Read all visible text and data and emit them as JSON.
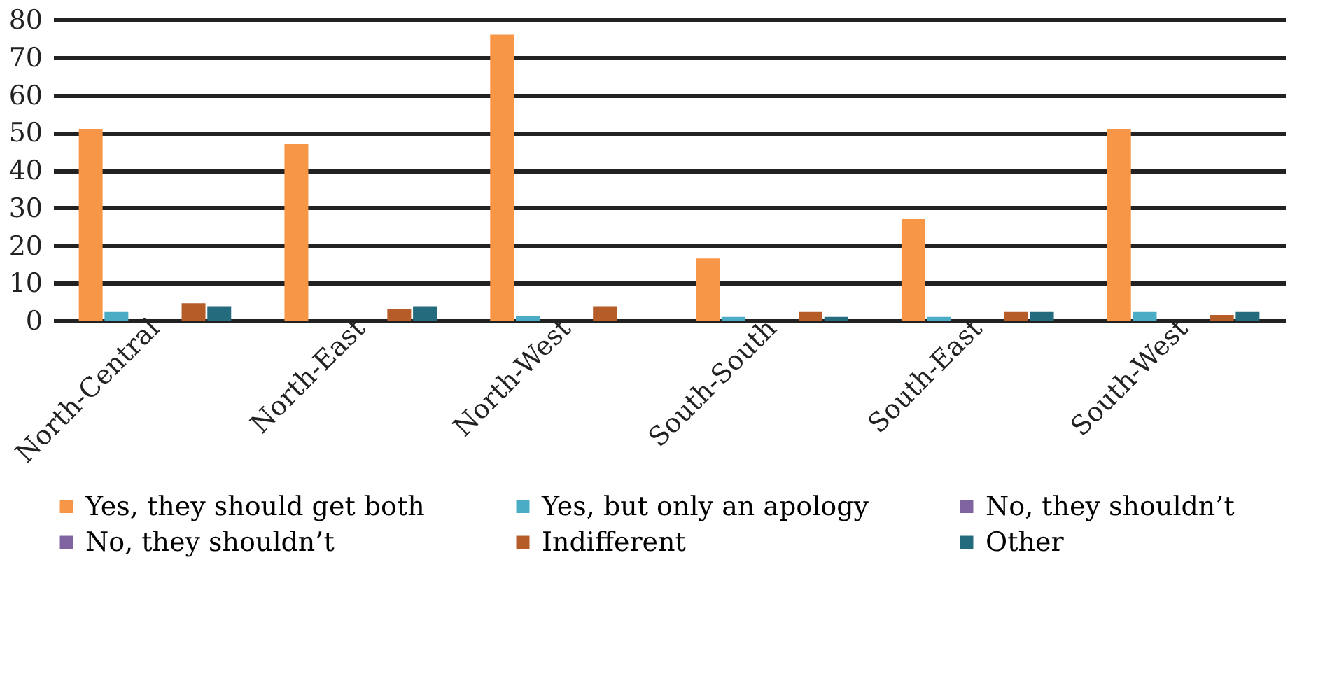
{
  "chart_data": {
    "type": "bar",
    "categories": [
      "North-Central",
      "North-East",
      "North-West",
      "South-South",
      "South-East",
      "South-West"
    ],
    "series": [
      {
        "name": "Yes, they should get both",
        "color": "#f79646",
        "values": [
          51,
          47,
          76,
          16.5,
          27,
          51
        ]
      },
      {
        "name": "Yes, but only an apology",
        "color": "#4bacc6",
        "values": [
          2.3,
          0,
          1.2,
          1,
          1,
          2.3
        ]
      },
      {
        "name": "No, they shouldn’t",
        "color": "#8064a2",
        "values": [
          0,
          0,
          0,
          0,
          0,
          0
        ]
      },
      {
        "name": "No, they shouldn’t",
        "color": "#8064a2",
        "values": [
          0,
          0,
          0,
          0,
          0,
          0
        ]
      },
      {
        "name": "Indifferent",
        "color": "#b65c28",
        "values": [
          4.6,
          3,
          3.8,
          2.3,
          2.3,
          1.5
        ]
      },
      {
        "name": "Other",
        "color": "#256b7e",
        "values": [
          3.8,
          3.8,
          0,
          1,
          2.3,
          2.3
        ]
      }
    ],
    "ylim": [
      0,
      80
    ],
    "yticks": [
      0,
      10,
      20,
      30,
      40,
      50,
      60,
      70,
      80
    ],
    "grid": "y",
    "legend": "bottom"
  }
}
